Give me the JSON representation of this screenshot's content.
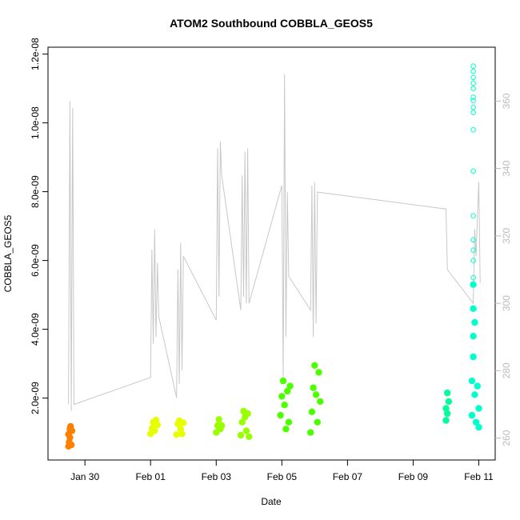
{
  "chart_data": {
    "type": "scatter",
    "title": "ATOM2 Southbound COBBLA_GEOS5",
    "xlabel": "Date",
    "ylabel": "COBBLA_GEOS5",
    "x_ticks": [
      "Jan 30",
      "Feb 01",
      "Feb 03",
      "Feb 05",
      "Feb 07",
      "Feb 09",
      "Feb 11"
    ],
    "xlim": [
      "2016-01-28 21:00",
      "2016-02-11 12:00"
    ],
    "ylim": [
      2e-10,
      1.22e-08
    ],
    "y_ticks": [
      "2.0e-09",
      "4.0e-09",
      "6.0e-09",
      "8.0e-09",
      "1.0e-08",
      "1.2e-08"
    ],
    "y_tick_values": [
      2e-09,
      4e-09,
      6e-09,
      8e-09,
      1e-08,
      1.2e-08
    ],
    "y2_ticks": [
      "260",
      "280",
      "300",
      "320",
      "340",
      "360"
    ],
    "y2_tick_values": [
      260,
      280,
      300,
      320,
      340,
      360
    ],
    "y2lim": [
      253.5,
      376
    ],
    "grid": false,
    "series": [
      {
        "color": "#ff8000",
        "marker": "circle",
        "points": [
          [
            "2016-01-29 12:00",
            6e-10
          ],
          [
            "2016-01-29 12:00",
            9.5e-10
          ],
          [
            "2016-01-29 12:30",
            7.2e-10
          ],
          [
            "2016-01-29 13:00",
            1.1e-09
          ],
          [
            "2016-01-29 13:00",
            8.5e-10
          ],
          [
            "2016-01-29 13:30",
            1.18e-09
          ],
          [
            "2016-01-29 14:00",
            6.4e-10
          ],
          [
            "2016-01-29 14:30",
            1.05e-09
          ]
        ]
      },
      {
        "color": "#e5ff00",
        "marker": "circle",
        "points": [
          [
            "2016-02-01 00:00",
            9.6e-10
          ],
          [
            "2016-02-01 01:00",
            1.12e-09
          ],
          [
            "2016-02-01 02:00",
            1.3e-09
          ],
          [
            "2016-02-01 03:00",
            1.05e-09
          ],
          [
            "2016-02-01 04:00",
            1.36e-09
          ],
          [
            "2016-02-01 05:00",
            1.22e-09
          ],
          [
            "2016-02-01 19:00",
            9.4e-10
          ],
          [
            "2016-02-01 20:00",
            1.25e-09
          ],
          [
            "2016-02-01 21:00",
            1.34e-09
          ],
          [
            "2016-02-01 22:00",
            1.1e-09
          ],
          [
            "2016-02-01 23:00",
            9.6e-10
          ],
          [
            "2016-02-02 00:00",
            1.28e-09
          ]
        ]
      },
      {
        "color": "#99ff00",
        "marker": "circle",
        "points": [
          [
            "2016-02-03 00:00",
            1e-09
          ],
          [
            "2016-02-03 01:00",
            1.2e-09
          ],
          [
            "2016-02-03 02:00",
            1.38e-09
          ],
          [
            "2016-02-03 03:00",
            1.1e-09
          ],
          [
            "2016-02-03 04:00",
            1.2e-09
          ],
          [
            "2016-02-03 18:00",
            9.2e-10
          ],
          [
            "2016-02-03 19:00",
            1.3e-09
          ],
          [
            "2016-02-03 20:00",
            1.62e-09
          ],
          [
            "2016-02-03 21:00",
            1.45e-09
          ],
          [
            "2016-02-03 22:00",
            1.05e-09
          ],
          [
            "2016-02-03 23:00",
            1.55e-09
          ],
          [
            "2016-02-04 00:00",
            8.8e-10
          ]
        ]
      },
      {
        "color": "#4cff00",
        "marker": "circle",
        "points": [
          [
            "2016-02-04 23:00",
            1.5e-09
          ],
          [
            "2016-02-05 00:00",
            2.05e-09
          ],
          [
            "2016-02-05 01:00",
            2.5e-09
          ],
          [
            "2016-02-05 02:00",
            1.8e-09
          ],
          [
            "2016-02-05 03:00",
            1.1e-09
          ],
          [
            "2016-02-05 04:00",
            2.2e-09
          ],
          [
            "2016-02-05 05:00",
            1.3e-09
          ],
          [
            "2016-02-05 06:00",
            2.35e-09
          ],
          [
            "2016-02-05 21:00",
            1e-09
          ],
          [
            "2016-02-05 22:00",
            1.6e-09
          ],
          [
            "2016-02-05 23:00",
            2.3e-09
          ],
          [
            "2016-02-06 00:00",
            2.95e-09
          ],
          [
            "2016-02-06 01:00",
            2.1e-09
          ],
          [
            "2016-02-06 02:00",
            1.3e-09
          ],
          [
            "2016-02-06 03:00",
            2.75e-09
          ],
          [
            "2016-02-06 04:00",
            1.9e-09
          ]
        ]
      },
      {
        "color": "#00ff9a",
        "marker": "circle",
        "points": [
          [
            "2016-02-10 00:00",
            1.35e-09
          ],
          [
            "2016-02-10 00:00",
            1.7e-09
          ],
          [
            "2016-02-10 01:00",
            2.15e-09
          ],
          [
            "2016-02-10 01:00",
            1.55e-09
          ],
          [
            "2016-02-10 02:00",
            1.9e-09
          ]
        ]
      },
      {
        "color": "#00ffcc",
        "marker": "circle",
        "points": [
          [
            "2016-02-10 19:00",
            1.5e-09
          ],
          [
            "2016-02-10 19:00",
            2.5e-09
          ],
          [
            "2016-02-10 20:00",
            3.2e-09
          ],
          [
            "2016-02-10 20:00",
            3.8e-09
          ],
          [
            "2016-02-10 20:00",
            4.6e-09
          ],
          [
            "2016-02-10 20:00",
            5.3e-09
          ],
          [
            "2016-02-10 21:00",
            2.1e-09
          ],
          [
            "2016-02-10 21:00",
            4.2e-09
          ],
          [
            "2016-02-10 22:00",
            1.3e-09
          ],
          [
            "2016-02-10 23:00",
            2.35e-09
          ],
          [
            "2016-02-11 00:00",
            1.7e-09
          ],
          [
            "2016-02-11 00:00",
            1.15e-09
          ]
        ]
      },
      {
        "color": "#00ffcc",
        "marker": "open-circle",
        "points": [
          [
            "2016-02-10 20:00",
            1.165e-08
          ],
          [
            "2016-02-10 20:00",
            1.15e-08
          ],
          [
            "2016-02-10 20:00",
            1.132e-08
          ],
          [
            "2016-02-10 20:00",
            1.115e-08
          ],
          [
            "2016-02-10 20:00",
            1.1e-08
          ],
          [
            "2016-02-10 20:00",
            1.075e-08
          ],
          [
            "2016-02-10 20:00",
            1.065e-08
          ],
          [
            "2016-02-10 20:00",
            1.045e-08
          ],
          [
            "2016-02-10 20:00",
            1.03e-08
          ],
          [
            "2016-02-10 20:00",
            9.8e-09
          ],
          [
            "2016-02-10 20:00",
            8.6e-09
          ],
          [
            "2016-02-10 20:00",
            7.3e-09
          ],
          [
            "2016-02-10 20:00",
            6.6e-09
          ],
          [
            "2016-02-10 20:00",
            6.3e-09
          ],
          [
            "2016-02-10 20:00",
            6e-09
          ],
          [
            "2016-02-10 20:00",
            5.5e-09
          ]
        ]
      }
    ],
    "secondary_line": {
      "color": "#c8c8c8",
      "axis": "right",
      "points": [
        [
          "2016-01-29 12:00",
          270
        ],
        [
          "2016-01-29 13:00",
          360
        ],
        [
          "2016-01-29 14:00",
          268
        ],
        [
          "2016-01-29 15:00",
          358
        ],
        [
          "2016-01-29 16:00",
          270
        ],
        [
          "2016-02-01 00:00",
          278
        ],
        [
          "2016-02-01 01:00",
          316
        ],
        [
          "2016-02-01 02:00",
          288
        ],
        [
          "2016-02-01 03:00",
          322
        ],
        [
          "2016-02-01 04:00",
          290
        ],
        [
          "2016-02-01 05:00",
          312
        ],
        [
          "2016-02-01 06:00",
          296
        ],
        [
          "2016-02-01 19:00",
          272
        ],
        [
          "2016-02-01 20:00",
          310
        ],
        [
          "2016-02-01 21:00",
          276
        ],
        [
          "2016-02-01 22:00",
          318
        ],
        [
          "2016-02-01 23:00",
          280
        ],
        [
          "2016-02-02 00:00",
          314
        ],
        [
          "2016-02-03 00:00",
          295
        ],
        [
          "2016-02-03 01:00",
          346
        ],
        [
          "2016-02-03 02:00",
          302
        ],
        [
          "2016-02-03 03:00",
          348
        ],
        [
          "2016-02-03 04:00",
          338
        ],
        [
          "2016-02-03 18:00",
          298
        ],
        [
          "2016-02-03 19:00",
          338
        ],
        [
          "2016-02-03 20:00",
          302
        ],
        [
          "2016-02-03 21:00",
          345
        ],
        [
          "2016-02-03 22:00",
          300
        ],
        [
          "2016-02-03 23:00",
          346
        ],
        [
          "2016-02-04 00:00",
          300
        ],
        [
          "2016-02-05 00:00",
          335
        ],
        [
          "2016-02-05 01:00",
          278
        ],
        [
          "2016-02-05 02:00",
          368
        ],
        [
          "2016-02-05 03:00",
          290
        ],
        [
          "2016-02-05 04:00",
          333
        ],
        [
          "2016-02-05 05:00",
          308
        ],
        [
          "2016-02-05 21:00",
          298
        ],
        [
          "2016-02-05 22:00",
          335
        ],
        [
          "2016-02-05 23:00",
          290
        ],
        [
          "2016-02-06 00:00",
          336
        ],
        [
          "2016-02-06 01:00",
          294
        ],
        [
          "2016-02-06 02:00",
          333
        ],
        [
          "2016-02-10 00:00",
          328
        ],
        [
          "2016-02-10 01:00",
          310
        ],
        [
          "2016-02-10 20:00",
          300
        ],
        [
          "2016-02-10 21:00",
          322
        ],
        [
          "2016-02-10 22:00",
          314
        ],
        [
          "2016-02-10 23:00",
          326
        ],
        [
          "2016-02-11 00:00",
          336
        ],
        [
          "2016-02-11 01:00",
          306
        ]
      ]
    }
  }
}
